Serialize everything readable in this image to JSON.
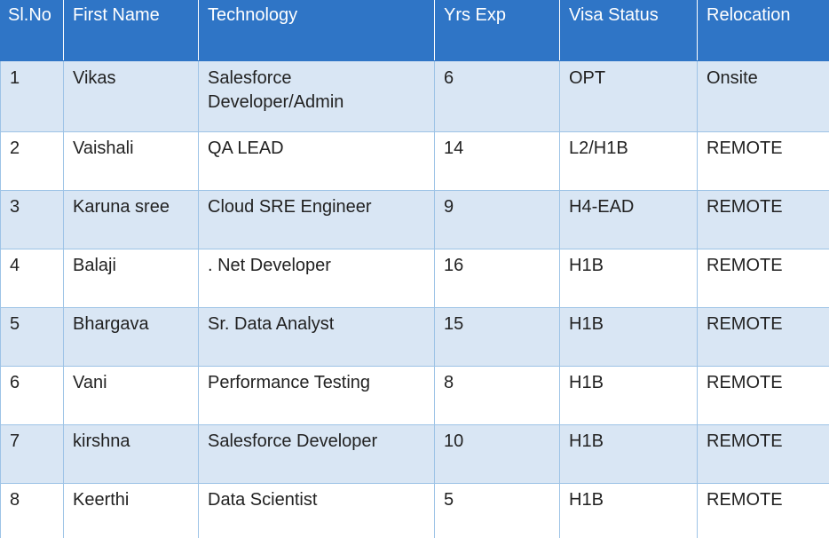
{
  "table": {
    "headers": [
      "Sl.No",
      "First Name",
      "Technology",
      "Yrs Exp",
      "Visa Status",
      "Relocation"
    ],
    "rows": [
      [
        "1",
        "Vikas",
        "Salesforce Developer/Admin",
        "6",
        "OPT",
        "Onsite"
      ],
      [
        "2",
        "Vaishali",
        "QA LEAD",
        "14",
        "L2/H1B",
        "REMOTE"
      ],
      [
        "3",
        "Karuna sree",
        "Cloud SRE Engineer",
        "9",
        "H4-EAD",
        "REMOTE"
      ],
      [
        "4",
        "Balaji",
        ". Net Developer",
        "16",
        "H1B",
        "REMOTE"
      ],
      [
        "5",
        "Bhargava",
        "Sr. Data Analyst",
        "15",
        "H1B",
        "REMOTE"
      ],
      [
        "6",
        "Vani",
        "Performance Testing",
        "8",
        "H1B",
        "REMOTE"
      ],
      [
        "7",
        "kirshna",
        "Salesforce Developer",
        "10",
        "H1B",
        "REMOTE"
      ],
      [
        "8",
        "Keerthi",
        "Data Scientist",
        "5",
        "H1B",
        "REMOTE"
      ]
    ]
  },
  "colors": {
    "header_bg": "#2f75c6",
    "header_text": "#ffffff",
    "band_row_bg": "#d9e6f4",
    "plain_row_bg": "#ffffff",
    "border": "#9dc3e6"
  }
}
